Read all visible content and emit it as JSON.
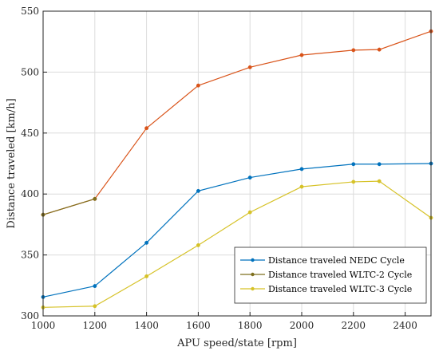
{
  "chart_data": {
    "type": "line",
    "title": "",
    "xlabel": "APU speed/state [rpm]",
    "ylabel": "Distance traveled [km/h]",
    "xlim": [
      1000,
      2500
    ],
    "ylim": [
      300,
      550
    ],
    "xticks": [
      "1000",
      "1200",
      "1400",
      "1600",
      "1800",
      "2000",
      "2200",
      "2400"
    ],
    "yticks": [
      "300",
      "350",
      "400",
      "450",
      "500",
      "550"
    ],
    "grid": true,
    "legend_position": "bottom-right",
    "x": [
      1000,
      1200,
      1400,
      1600,
      1800,
      2000,
      2200,
      2300,
      2500
    ],
    "series": [
      {
        "name": "Distance traveled NEDC Cycle",
        "color": "#0072BD",
        "values": [
          315.5,
          324.5,
          360,
          402.5,
          413.5,
          420.5,
          424.5,
          424.5,
          425
        ]
      },
      {
        "name": "Distance traveled WLTC-2 Cycle",
        "color": "#7E6F1D",
        "values": [
          383,
          396,
          null,
          null,
          null,
          null,
          null,
          null,
          null
        ]
      },
      {
        "name": "Distance traveled WLTC-3 Cycle",
        "color": "#D6C227",
        "values": [
          307,
          308,
          332.5,
          358,
          385,
          406,
          410,
          410.5,
          380.5
        ]
      }
    ],
    "overlay_series": {
      "color": "#D95319",
      "values": [
        383,
        396,
        454,
        489,
        504,
        514,
        518,
        518.5,
        533.5
      ]
    }
  }
}
